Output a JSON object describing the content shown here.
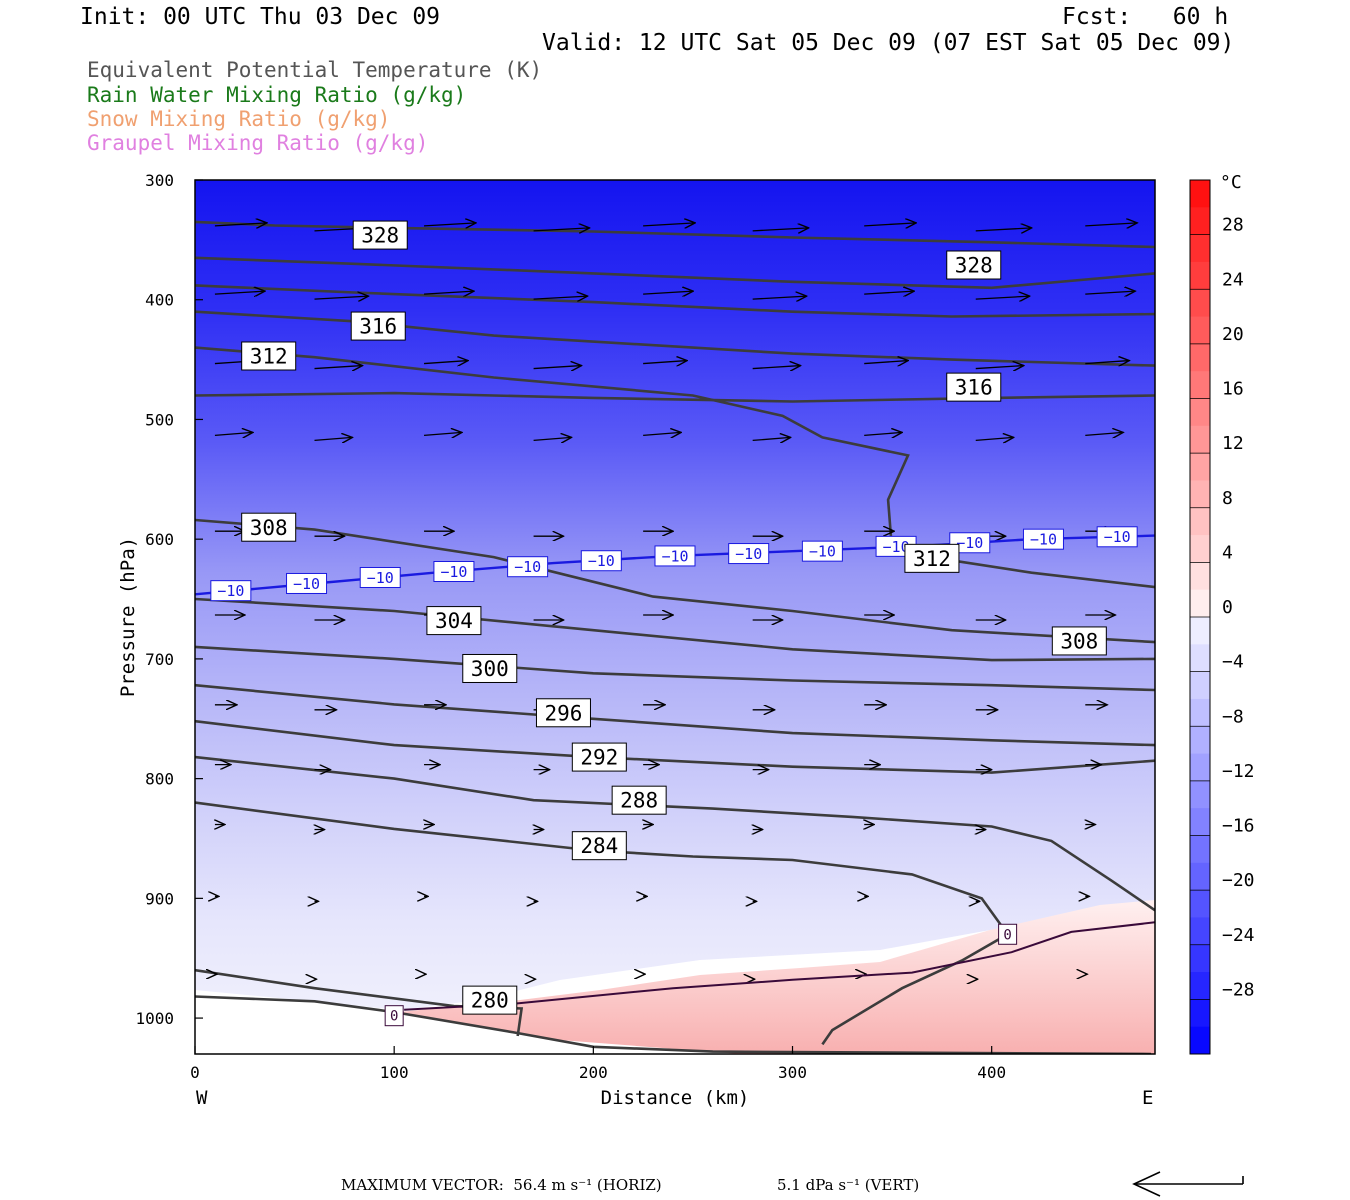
{
  "header": {
    "init": "Init: 00 UTC Thu 03 Dec 09",
    "fcst": "Fcst:   60 h",
    "valid": "Valid: 12 UTC Sat 05 Dec 09 (07 EST Sat 05 Dec 09)"
  },
  "legend": [
    {
      "label": "Equivalent Potential Temperature (K)",
      "color": "#555555"
    },
    {
      "label": "Rain Water Mixing Ratio (g/kg)",
      "color": "#1a7a1a"
    },
    {
      "label": "Snow Mixing Ratio (g/kg)",
      "color": "#f0a070"
    },
    {
      "label": "Graupel Mixing Ratio (g/kg)",
      "color": "#e080e0"
    }
  ],
  "chart_data": {
    "type": "cross-section",
    "xlabel": "Distance (km)",
    "ylabel": "Pressure (hPa)",
    "xlim": [
      0,
      482
    ],
    "ylim": [
      1030,
      300
    ],
    "xticks": [
      0,
      100,
      200,
      300,
      400
    ],
    "yticks": [
      300,
      400,
      500,
      600,
      700,
      800,
      900,
      1000
    ],
    "x_end_labels": {
      "left": "W",
      "right": "E"
    },
    "colorbar": {
      "unit": "°C",
      "labels": [
        "28",
        "24",
        "20",
        "16",
        "12",
        "8",
        "4",
        "0",
        "−4",
        "−8",
        "−12",
        "−16",
        "−20",
        "−24",
        "−28"
      ],
      "values": [
        28,
        24,
        20,
        16,
        12,
        8,
        4,
        0,
        -4,
        -8,
        -12,
        -16,
        -20,
        -24,
        -28
      ]
    },
    "theta_e_labels": [
      {
        "text": "328",
        "x": 93,
        "p": 346
      },
      {
        "text": "328",
        "x": 391,
        "p": 371
      },
      {
        "text": "316",
        "x": 92,
        "p": 422
      },
      {
        "text": "312",
        "x": 37,
        "p": 447
      },
      {
        "text": "316",
        "x": 391,
        "p": 473
      },
      {
        "text": "308",
        "x": 37,
        "p": 590
      },
      {
        "text": "312",
        "x": 370,
        "p": 616
      },
      {
        "text": "304",
        "x": 130,
        "p": 668
      },
      {
        "text": "308",
        "x": 444,
        "p": 685
      },
      {
        "text": "300",
        "x": 148,
        "p": 708
      },
      {
        "text": "296",
        "x": 185,
        "p": 745
      },
      {
        "text": "292",
        "x": 203,
        "p": 782
      },
      {
        "text": "288",
        "x": 223,
        "p": 818
      },
      {
        "text": "284",
        "x": 203,
        "p": 856
      },
      {
        "text": "280",
        "x": 148,
        "p": 985
      }
    ],
    "isotherm_labels": [
      {
        "text": "−10",
        "x": 18,
        "p": 643
      },
      {
        "text": "−10",
        "x": 56,
        "p": 637
      },
      {
        "text": "−10",
        "x": 93,
        "p": 632
      },
      {
        "text": "−10",
        "x": 130,
        "p": 627
      },
      {
        "text": "−10",
        "x": 167,
        "p": 623
      },
      {
        "text": "−10",
        "x": 204,
        "p": 618
      },
      {
        "text": "−10",
        "x": 241,
        "p": 614
      },
      {
        "text": "−10",
        "x": 278,
        "p": 612
      },
      {
        "text": "−10",
        "x": 315,
        "p": 610
      },
      {
        "text": "−10",
        "x": 352,
        "p": 606
      },
      {
        "text": "−10",
        "x": 389,
        "p": 603
      },
      {
        "text": "−10",
        "x": 426,
        "p": 600
      },
      {
        "text": "−10",
        "x": 463,
        "p": 598
      }
    ],
    "freezing_labels": [
      {
        "text": "0",
        "x": 100,
        "p": 998
      },
      {
        "text": "0",
        "x": 408,
        "p": 930
      }
    ]
  },
  "footer": {
    "max_vector": "MAXIMUM VECTOR:  56.4 m s⁻¹ (HORIZ)",
    "vert": "5.1 dPa s⁻¹ (VERT)"
  }
}
